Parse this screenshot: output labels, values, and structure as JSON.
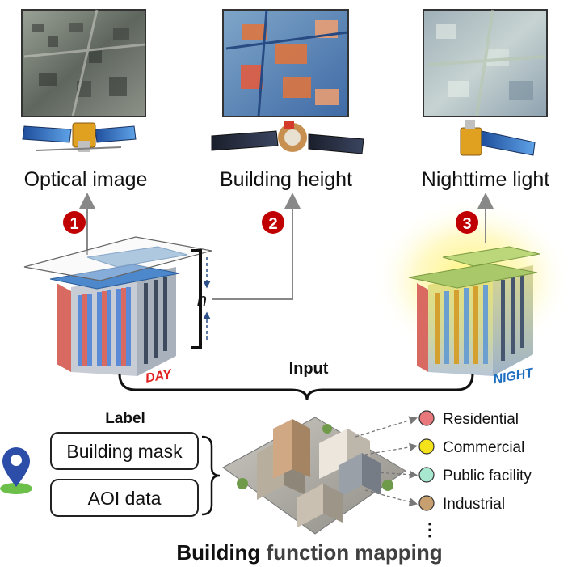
{
  "sources": [
    {
      "label": "Optical image",
      "number": "1"
    },
    {
      "label": "Building height",
      "number": "2"
    },
    {
      "label": "Nighttime light",
      "number": "3"
    }
  ],
  "height_symbol": "h",
  "day_label": "DAY",
  "night_label": "NIGHT",
  "input_label": "Input",
  "label_header": "Label",
  "label_boxes": [
    "Building mask",
    "AOI data"
  ],
  "functions": [
    {
      "name": "Residential",
      "color": "#e8787c"
    },
    {
      "name": "Commercial",
      "color": "#f4e21a"
    },
    {
      "name": "Public facility",
      "color": "#a8e8d0"
    },
    {
      "name": "Industrial",
      "color": "#c8a070"
    }
  ],
  "more_symbol": "⋮",
  "title_bold": "Building",
  "title_rest": " function mapping",
  "colors": {
    "badge": "#c00000",
    "day": "#e02020",
    "night": "#1f6fc0",
    "title_rest": "#404040"
  }
}
